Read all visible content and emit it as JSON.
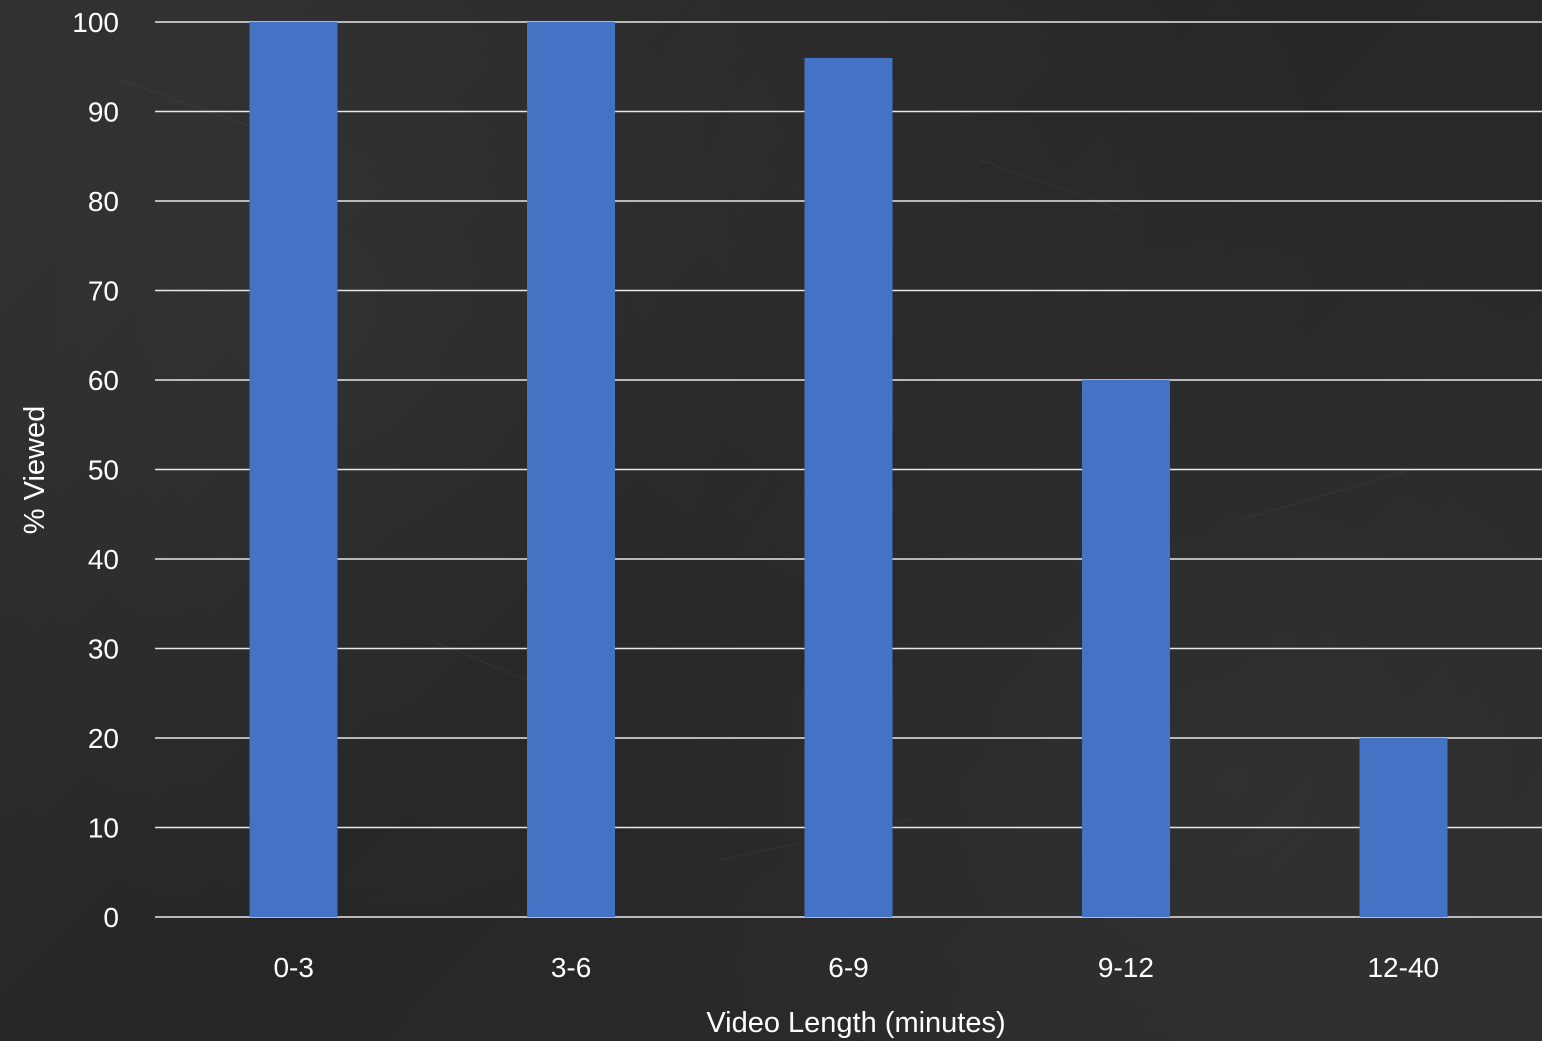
{
  "colors": {
    "background": "#2b2b2b",
    "bar": "#4472c4",
    "grid": "#e8e8e8",
    "text": "#ffffff"
  },
  "chart_data": {
    "type": "bar",
    "categories": [
      "0-3",
      "3-6",
      "6-9",
      "9-12",
      "12-40"
    ],
    "values": [
      100,
      100,
      96,
      60,
      20
    ],
    "title": "",
    "xlabel": "Video Length (minutes)",
    "ylabel": "% Viewed",
    "ylim": [
      0,
      100
    ],
    "yticks": [
      0,
      10,
      20,
      30,
      40,
      50,
      60,
      70,
      80,
      90,
      100
    ],
    "grid": true,
    "legend": "none"
  }
}
